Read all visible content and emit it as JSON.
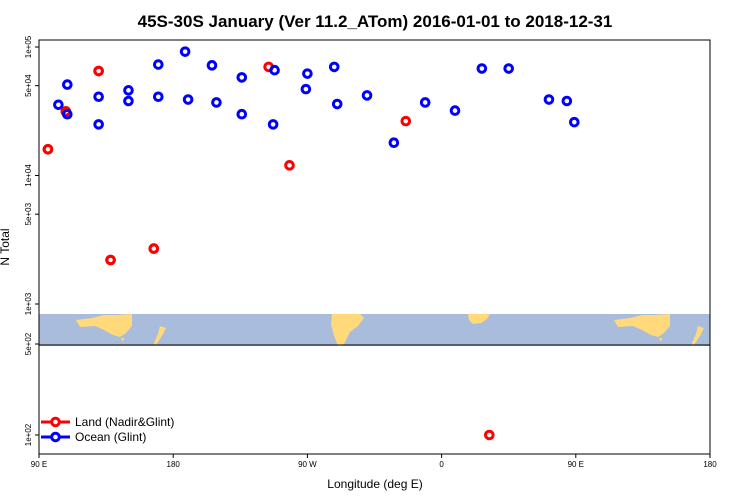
{
  "chart_data": {
    "type": "scatter",
    "title": "45S-30S January (Ver 11.2_ATom)   2016-01-01 to 2018-12-31",
    "xlabel": "Longitude (deg E)",
    "ylabel": "N Total",
    "y_scale": "log",
    "ylim": [
      80,
      120000
    ],
    "x_tick_labels": [
      "90 E",
      "180",
      "90 W",
      "0",
      "90 E",
      "180"
    ],
    "y_tick_labels": [
      "1e+02",
      "5e+02",
      "1e+03",
      "5e+03",
      "1e+04",
      "5e+04",
      "1e+05"
    ],
    "legend_position": "bottom-left",
    "series": [
      {
        "name": "Land (Nadir&Glint)",
        "color": "#ff0000",
        "points": [
          {
            "x": 96,
            "y": 16000
          },
          {
            "x": 108,
            "y": 31500
          },
          {
            "x": 130,
            "y": 65000
          },
          {
            "x": 138,
            "y": 2200
          },
          {
            "x": 167,
            "y": 2700
          },
          {
            "x": 244,
            "y": 70000
          },
          {
            "x": 258,
            "y": 12000
          },
          {
            "x": 336,
            "y": 26500
          },
          {
            "x": 32,
            "y": 100
          },
          {
            "x": 96,
            "y": 16000
          },
          {
            "x": 108,
            "y": 31500
          },
          {
            "x": 130,
            "y": 65000
          },
          {
            "x": 138,
            "y": 2200
          },
          {
            "x": 167,
            "y": 2700
          }
        ]
      },
      {
        "name": "Ocean (Glint)",
        "color": "#0000ff",
        "points": [
          {
            "x": 84,
            "y": 38000
          },
          {
            "x": 103,
            "y": 35500
          },
          {
            "x": 109,
            "y": 30000
          },
          {
            "x": 130,
            "y": 25000
          },
          {
            "x": 150,
            "y": 46000
          },
          {
            "x": 170,
            "y": 73000
          },
          {
            "x": 188,
            "y": 92000
          },
          {
            "x": 206,
            "y": 72000
          },
          {
            "x": 226,
            "y": 58000
          },
          {
            "x": 248,
            "y": 66000
          },
          {
            "x": 270,
            "y": 62000
          },
          {
            "x": 290,
            "y": 36000
          },
          {
            "x": 310,
            "y": 42000
          },
          {
            "x": 328,
            "y": 18000
          },
          {
            "x": 349,
            "y": 37000
          },
          {
            "x": 9,
            "y": 32000
          },
          {
            "x": 27,
            "y": 68000
          },
          {
            "x": 45,
            "y": 68000
          },
          {
            "x": 72,
            "y": 39000
          },
          {
            "x": 89,
            "y": 26000
          },
          {
            "x": 109,
            "y": 51000
          },
          {
            "x": 130,
            "y": 41000
          },
          {
            "x": 150,
            "y": 38000
          },
          {
            "x": 170,
            "y": 41000
          },
          {
            "x": 190,
            "y": 39000
          },
          {
            "x": 209,
            "y": 37000
          },
          {
            "x": 226,
            "y": 30000
          },
          {
            "x": 247,
            "y": 25000
          },
          {
            "x": 269,
            "y": 47000
          },
          {
            "x": 288,
            "y": 70000
          }
        ]
      }
    ]
  },
  "colors": {
    "map_ocean": "#a9bcdb",
    "map_land": "#ffd97a",
    "background": "#ffffff"
  }
}
